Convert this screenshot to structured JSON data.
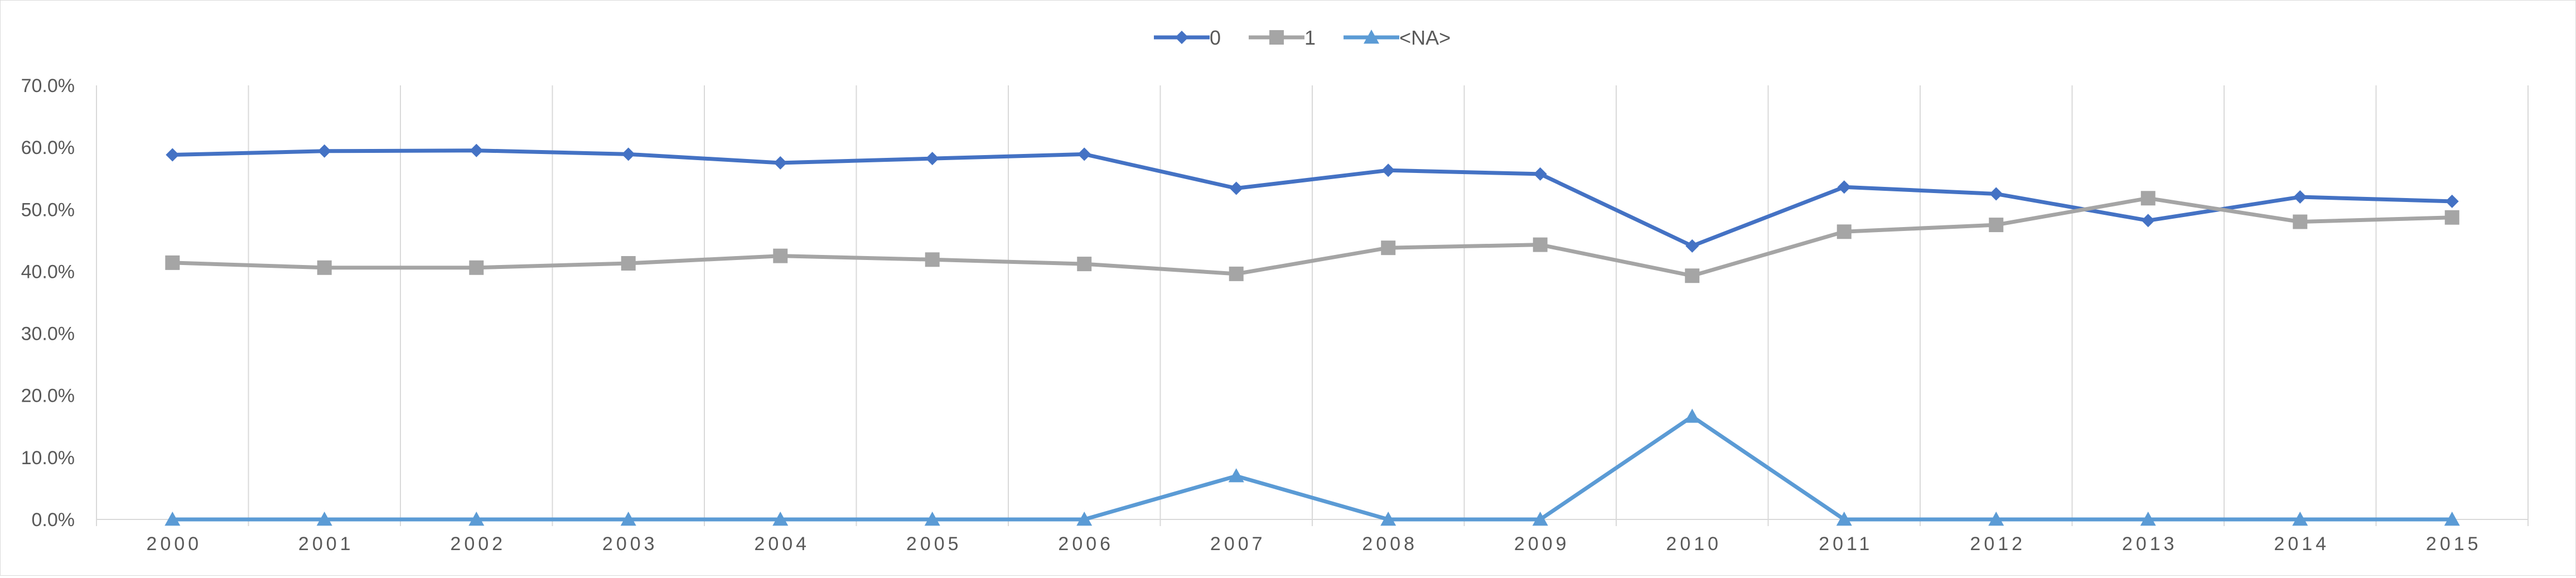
{
  "chart_data": {
    "type": "line",
    "title": "",
    "xlabel": "",
    "ylabel": "",
    "categories": [
      "2000",
      "2001",
      "2002",
      "2003",
      "2004",
      "2005",
      "2006",
      "2007",
      "2008",
      "2009",
      "2010",
      "2011",
      "2012",
      "2013",
      "2014",
      "2015"
    ],
    "ylim": [
      0,
      70
    ],
    "y_ticks": [
      "0.0%",
      "10.0%",
      "20.0%",
      "30.0%",
      "40.0%",
      "50.0%",
      "60.0%",
      "70.0%"
    ],
    "y_format": "percent",
    "grid": "vertical",
    "legend_position": "top",
    "series": [
      {
        "name": "0",
        "color": "#4472c4",
        "marker": "diamond",
        "values": [
          58.8,
          59.4,
          59.5,
          58.9,
          57.5,
          58.2,
          58.9,
          53.4,
          56.3,
          55.7,
          44.1,
          53.6,
          52.5,
          48.2,
          52.0,
          51.3
        ]
      },
      {
        "name": "1",
        "color": "#a5a5a5",
        "marker": "square",
        "values": [
          41.4,
          40.6,
          40.6,
          41.3,
          42.5,
          41.9,
          41.2,
          39.6,
          43.8,
          44.3,
          39.3,
          46.4,
          47.5,
          51.8,
          48.0,
          48.7
        ]
      },
      {
        "name": "<NA>",
        "color": "#5b9bd5",
        "marker": "triangle",
        "values": [
          0,
          0,
          0,
          0,
          0,
          0,
          0,
          7.0,
          0,
          0,
          16.6,
          0,
          0,
          0,
          0,
          0
        ]
      }
    ]
  }
}
